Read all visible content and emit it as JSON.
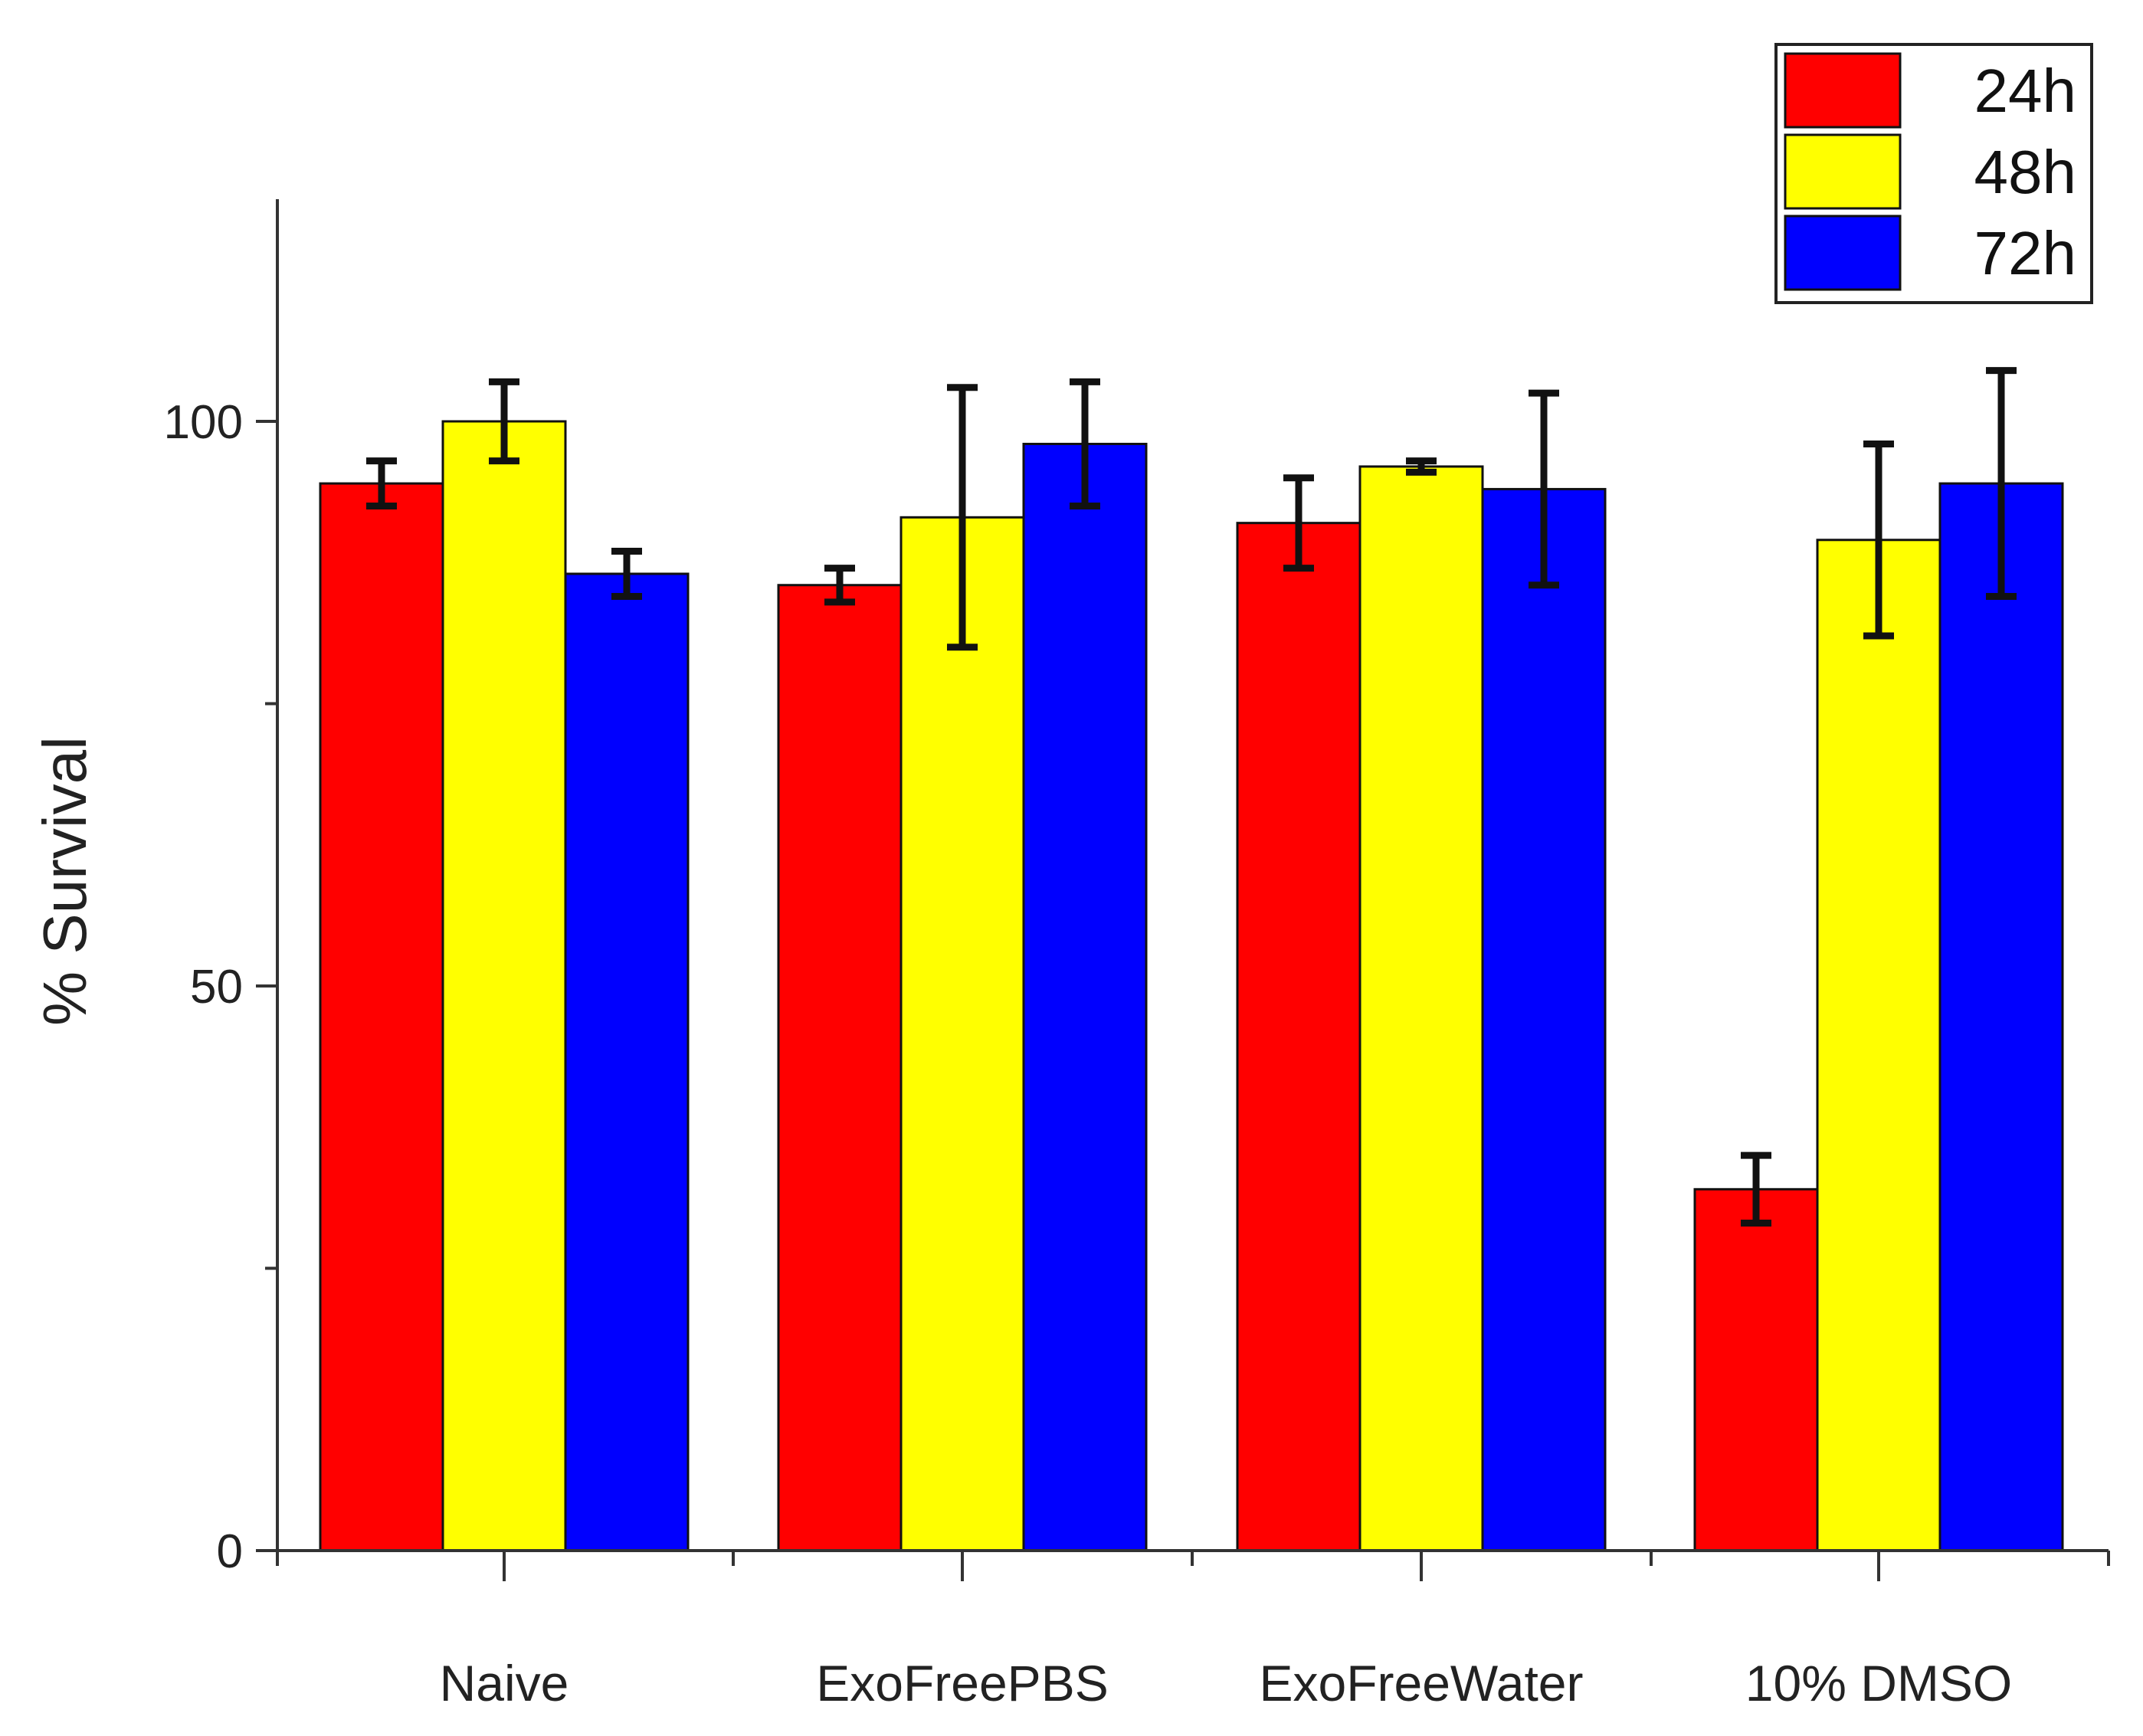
{
  "chart_data": {
    "type": "bar",
    "title": "",
    "xlabel": "",
    "ylabel": "% Survival",
    "ylim": [
      0,
      120
    ],
    "yticks": [
      0,
      50,
      100
    ],
    "yticks_minor": [
      25,
      75
    ],
    "grid": false,
    "legend_position": "top-right",
    "categories": [
      "Naive",
      "ExoFreePBS",
      "ExoFreeWater",
      "10% DMSO"
    ],
    "series": [
      {
        "name": "24h",
        "color": "#ff0000",
        "values": [
          94.5,
          85.5,
          91,
          32
        ],
        "errors": [
          2,
          1.5,
          4,
          3
        ]
      },
      {
        "name": "48h",
        "color": "#ffff00",
        "values": [
          100,
          91.5,
          96,
          89.5
        ],
        "errors": [
          3.5,
          11.5,
          0.5,
          8.5
        ]
      },
      {
        "name": "72h",
        "color": "#0000ff",
        "values": [
          86.5,
          98,
          94,
          94.5
        ],
        "errors": [
          2,
          5.5,
          8.5,
          10
        ]
      }
    ]
  }
}
